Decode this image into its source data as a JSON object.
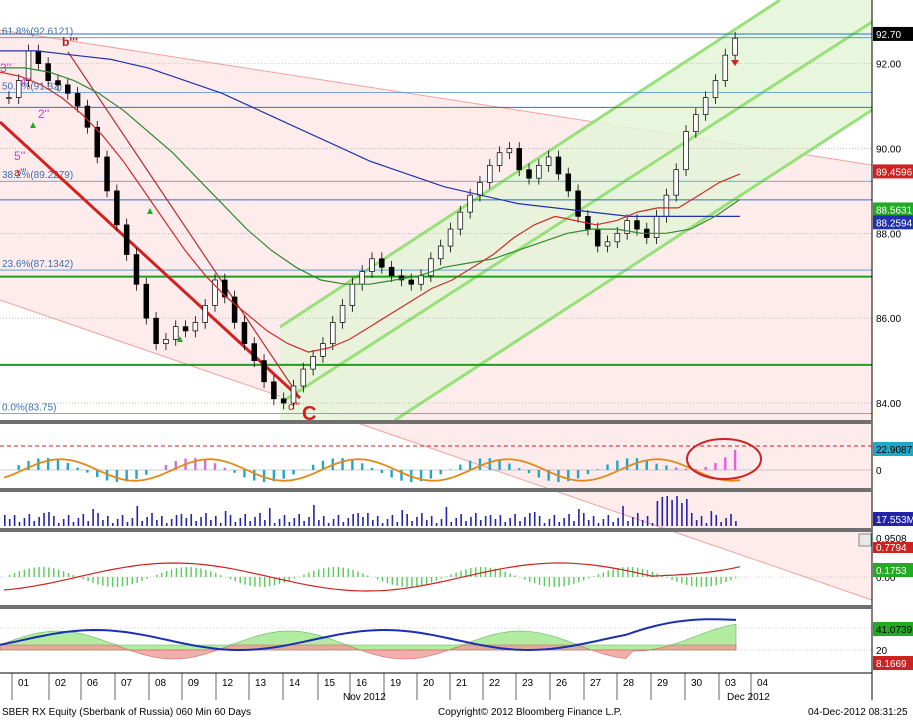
{
  "chart_data": {
    "type": "candlestick",
    "security": "SBER RX Equity (Sberbank of Russia) 060 Min 60 Days",
    "copyright": "Copyright© 2012 Bloomberg Finance L.P.",
    "timestamp": "04-Dec-2012 08:31:25",
    "x_ticks": [
      "01",
      "02",
      "06",
      "07",
      "08",
      "09",
      "12",
      "13",
      "14",
      "15",
      "16",
      "19",
      "20",
      "21",
      "22",
      "23",
      "26",
      "27",
      "28",
      "29",
      "30",
      "03",
      "04"
    ],
    "x_month_labels": [
      "Nov 2012",
      "Dec 2012"
    ],
    "main_panel": {
      "ylim": [
        83.6,
        93.5
      ],
      "y_ticks": [
        84.0,
        86.0,
        88.0,
        90.0,
        92.0
      ],
      "y_tick_labels": [
        "84.00",
        "86.00",
        "88.00",
        "90.00",
        "92.00"
      ],
      "price_close": [
        91.2,
        91.6,
        92.3,
        92.0,
        91.6,
        91.5,
        91.3,
        91.0,
        90.5,
        89.8,
        89.0,
        88.2,
        87.5,
        86.8,
        86.0,
        85.4,
        85.5,
        85.8,
        85.7,
        85.9,
        86.3,
        86.9,
        86.5,
        85.9,
        85.4,
        85.0,
        84.5,
        84.1,
        84.0,
        84.4,
        84.8,
        85.1,
        85.4,
        85.9,
        86.3,
        86.8,
        87.1,
        87.4,
        87.2,
        87.0,
        86.9,
        86.8,
        87.0,
        87.4,
        87.7,
        88.1,
        88.5,
        88.9,
        89.2,
        89.6,
        89.9,
        90.0,
        89.5,
        89.3,
        89.6,
        89.8,
        89.4,
        89.0,
        88.4,
        88.1,
        87.7,
        87.8,
        88.0,
        88.3,
        88.1,
        87.9,
        88.4,
        88.9,
        89.5,
        90.4,
        90.8,
        91.2,
        91.6,
        92.2,
        92.6
      ],
      "fib_labels": [
        "61.8%(92.6121)",
        "50.0%(91.32)",
        "38.2%(89.2279)",
        "23.6%(87.1342)",
        "0.0%(83.75)"
      ],
      "fib_levels": [
        92.6121,
        91.32,
        89.2279,
        87.1342,
        83.75
      ],
      "horizontal_levels": [
        92.7,
        90.97,
        88.79,
        86.98,
        84.9
      ],
      "ma_fast": [
        91.8,
        91.7,
        91.5,
        91.2,
        90.8,
        90.3,
        89.7,
        89.0,
        88.3,
        87.6,
        87.0,
        86.5,
        86.1,
        85.7,
        85.4,
        85.2,
        85.3,
        85.5,
        85.8,
        86.1,
        86.4,
        86.7,
        86.9,
        87.2,
        87.5,
        87.9,
        88.2,
        88.4,
        88.3,
        88.2,
        88.3,
        88.5,
        88.6,
        88.6,
        88.9,
        89.2,
        89.4
      ],
      "ma_medium": [
        91.9,
        91.9,
        91.8,
        91.6,
        91.3,
        90.9,
        90.4,
        89.9,
        89.3,
        88.7,
        88.1,
        87.6,
        87.2,
        86.9,
        86.8,
        86.8,
        86.9,
        87.0,
        87.2,
        87.3,
        87.4,
        87.6,
        87.8,
        88.0,
        88.1,
        88.1,
        88.0,
        88.0,
        88.1,
        88.4,
        88.8
      ],
      "ma_slow": [
        92.3,
        92.3,
        92.2,
        92.1,
        91.9,
        91.6,
        91.3,
        90.9,
        90.5,
        90.1,
        89.7,
        89.4,
        89.1,
        88.9,
        88.7,
        88.6,
        88.5,
        88.4,
        88.4,
        88.4,
        88.4
      ],
      "right_badges": [
        {
          "text": "92.70",
          "bg": "#000000",
          "fg": "#ffffff",
          "value": 92.7
        },
        {
          "text": "89.4596",
          "bg": "#cc2222",
          "fg": "#ffffff",
          "value": 89.4596
        },
        {
          "text": "88.5631",
          "bg": "#22aa22",
          "fg": "#ffffff",
          "value": 88.5631
        },
        {
          "text": "88.2594",
          "bg": "#2233aa",
          "fg": "#ffffff",
          "value": 88.2594
        }
      ],
      "wave_labels": [
        "b'''",
        "c'''",
        "C",
        "5''",
        "a'''",
        "3''",
        "4''",
        "2''"
      ]
    },
    "macd_panel": {
      "y_ticks": [
        0
      ],
      "y_tick_labels": [
        "0"
      ],
      "badge": {
        "text": "22.9087",
        "bg": "#1fa7c9",
        "fg": "#000000"
      },
      "signal_line_color": "#e08a1a"
    },
    "volume_panel": {
      "badge": {
        "text": "17.553M",
        "bg": "#2222aa",
        "fg": "#ffffff"
      }
    },
    "stoch_panel": {
      "badges": [
        {
          "text": "0.9508",
          "bg": "#ffffff",
          "fg": "#000000"
        },
        {
          "text": "0.7794",
          "bg": "#cc2222",
          "fg": "#ffffff"
        },
        {
          "text": "0.1753",
          "bg": "#22aa22",
          "fg": "#ffffff"
        }
      ],
      "y_tick_labels": [
        "0.00"
      ]
    },
    "dmi_panel": {
      "badges": [
        {
          "text": "41.0739",
          "bg": "#22aa22",
          "fg": "#000000"
        },
        {
          "text": "8.1669",
          "bg": "#cc2222",
          "fg": "#ffffff"
        }
      ],
      "y_tick_labels": [
        "20"
      ]
    }
  }
}
